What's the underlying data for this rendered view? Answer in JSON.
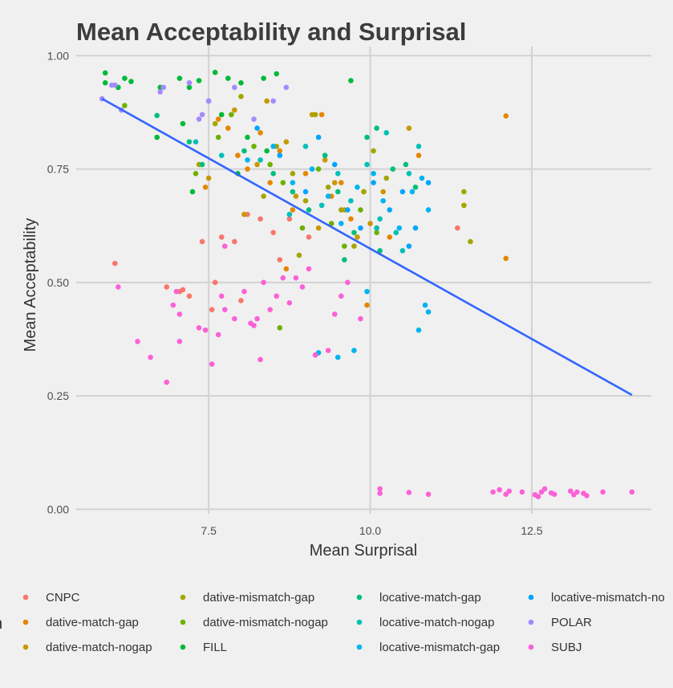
{
  "chart_data": {
    "type": "scatter",
    "title": "Mean Acceptability and Surprisal",
    "xlabel": "Mean Surprisal",
    "ylabel": "Mean Acceptability",
    "xlim": [
      5.45,
      14.35
    ],
    "ylim": [
      -0.01,
      1.02
    ],
    "x_ticks": [
      "7.5",
      "10.0",
      "12.5"
    ],
    "y_ticks": [
      "0.00",
      "0.25",
      "0.50",
      "0.75",
      "1.00"
    ],
    "grid": true,
    "legend": {
      "position": "bottom",
      "title": "n",
      "entries": [
        "CNPC",
        "dative-match-gap",
        "dative-match-nogap",
        "dative-mismatch-gap",
        "dative-mismatch-nogap",
        "FILL",
        "locative-match-gap",
        "locative-match-nogap",
        "locative-mismatch-gap",
        "locative-mismatch-no",
        "POLAR",
        "SUBJ"
      ]
    },
    "trend_line": {
      "color": "#3366ff",
      "points": [
        [
          5.85,
          0.905
        ],
        [
          14.05,
          0.252
        ]
      ]
    },
    "series": [
      {
        "name": "CNPC",
        "color": "#f8766d",
        "points": [
          [
            6.05,
            0.542
          ],
          [
            6.85,
            0.49
          ],
          [
            7.05,
            0.48
          ],
          [
            7.2,
            0.47
          ],
          [
            7.4,
            0.59
          ],
          [
            7.6,
            0.5
          ],
          [
            7.7,
            0.6
          ],
          [
            7.9,
            0.59
          ],
          [
            8.0,
            0.46
          ],
          [
            8.1,
            0.65
          ],
          [
            8.3,
            0.64
          ],
          [
            8.5,
            0.61
          ],
          [
            8.6,
            0.55
          ],
          [
            8.75,
            0.64
          ],
          [
            9.05,
            0.6
          ],
          [
            11.35,
            0.62
          ],
          [
            7.1,
            0.484
          ],
          [
            7.55,
            0.44
          ]
        ]
      },
      {
        "name": "dative-match-gap",
        "color": "#e58700",
        "points": [
          [
            7.65,
            0.86
          ],
          [
            7.8,
            0.84
          ],
          [
            7.95,
            0.78
          ],
          [
            8.1,
            0.75
          ],
          [
            8.3,
            0.83
          ],
          [
            8.45,
            0.72
          ],
          [
            8.6,
            0.79
          ],
          [
            8.8,
            0.66
          ],
          [
            9.0,
            0.74
          ],
          [
            9.25,
            0.87
          ],
          [
            9.4,
            0.69
          ],
          [
            9.55,
            0.72
          ],
          [
            9.7,
            0.64
          ],
          [
            9.9,
            0.7
          ],
          [
            10.1,
            0.62
          ],
          [
            10.3,
            0.6
          ],
          [
            10.75,
            0.78
          ],
          [
            12.1,
            0.867
          ],
          [
            12.1,
            0.553
          ],
          [
            9.95,
            0.45
          ],
          [
            8.7,
            0.53
          ],
          [
            7.45,
            0.71
          ]
        ]
      },
      {
        "name": "dative-match-nogap",
        "color": "#c99800",
        "points": [
          [
            7.5,
            0.73
          ],
          [
            7.9,
            0.88
          ],
          [
            8.25,
            0.76
          ],
          [
            8.4,
            0.9
          ],
          [
            8.7,
            0.81
          ],
          [
            8.85,
            0.69
          ],
          [
            9.1,
            0.87
          ],
          [
            9.3,
            0.77
          ],
          [
            9.45,
            0.72
          ],
          [
            9.6,
            0.66
          ],
          [
            9.8,
            0.6
          ],
          [
            10.0,
            0.63
          ],
          [
            10.2,
            0.7
          ],
          [
            10.6,
            0.84
          ],
          [
            8.05,
            0.65
          ],
          [
            9.2,
            0.62
          ]
        ]
      },
      {
        "name": "dative-mismatch-gap",
        "color": "#a3a500",
        "points": [
          [
            7.35,
            0.76
          ],
          [
            7.6,
            0.85
          ],
          [
            8.0,
            0.91
          ],
          [
            8.35,
            0.69
          ],
          [
            8.55,
            0.8
          ],
          [
            8.8,
            0.74
          ],
          [
            9.0,
            0.68
          ],
          [
            9.15,
            0.87
          ],
          [
            9.35,
            0.71
          ],
          [
            9.55,
            0.66
          ],
          [
            9.75,
            0.58
          ],
          [
            9.9,
            0.7
          ],
          [
            10.05,
            0.79
          ],
          [
            10.25,
            0.73
          ],
          [
            11.45,
            0.7
          ],
          [
            11.45,
            0.67
          ],
          [
            11.55,
            0.59
          ],
          [
            8.9,
            0.56
          ]
        ]
      },
      {
        "name": "dative-mismatch-nogap",
        "color": "#6bb100",
        "points": [
          [
            6.2,
            0.89
          ],
          [
            7.3,
            0.74
          ],
          [
            7.65,
            0.82
          ],
          [
            7.85,
            0.87
          ],
          [
            8.2,
            0.8
          ],
          [
            8.45,
            0.76
          ],
          [
            8.65,
            0.72
          ],
          [
            8.95,
            0.62
          ],
          [
            9.2,
            0.75
          ],
          [
            9.4,
            0.63
          ],
          [
            9.6,
            0.58
          ],
          [
            9.85,
            0.66
          ],
          [
            10.1,
            0.61
          ],
          [
            8.6,
            0.4
          ]
        ]
      },
      {
        "name": "FILL",
        "color": "#00ba38",
        "points": [
          [
            5.9,
            0.962
          ],
          [
            5.9,
            0.94
          ],
          [
            6.1,
            0.93
          ],
          [
            6.2,
            0.95
          ],
          [
            6.3,
            0.943
          ],
          [
            6.75,
            0.93
          ],
          [
            7.05,
            0.95
          ],
          [
            7.2,
            0.93
          ],
          [
            7.35,
            0.945
          ],
          [
            7.6,
            0.963
          ],
          [
            7.8,
            0.95
          ],
          [
            8.0,
            0.94
          ],
          [
            8.35,
            0.95
          ],
          [
            8.55,
            0.96
          ],
          [
            9.7,
            0.945
          ],
          [
            7.1,
            0.85
          ],
          [
            7.5,
            0.9
          ],
          [
            7.7,
            0.87
          ],
          [
            8.1,
            0.82
          ],
          [
            8.4,
            0.79
          ],
          [
            6.7,
            0.82
          ],
          [
            7.25,
            0.7
          ],
          [
            7.95,
            0.74
          ]
        ]
      },
      {
        "name": "locative-match-gap",
        "color": "#00bf7d",
        "points": [
          [
            6.7,
            0.868
          ],
          [
            7.2,
            0.81
          ],
          [
            7.4,
            0.76
          ],
          [
            8.05,
            0.79
          ],
          [
            8.5,
            0.74
          ],
          [
            8.8,
            0.7
          ],
          [
            9.05,
            0.66
          ],
          [
            9.3,
            0.78
          ],
          [
            9.5,
            0.7
          ],
          [
            9.75,
            0.61
          ],
          [
            9.95,
            0.82
          ],
          [
            10.1,
            0.84
          ],
          [
            10.35,
            0.75
          ],
          [
            10.55,
            0.76
          ],
          [
            10.7,
            0.71
          ],
          [
            10.15,
            0.57
          ],
          [
            9.6,
            0.55
          ]
        ]
      },
      {
        "name": "locative-match-nogap",
        "color": "#00c0b8",
        "points": [
          [
            7.3,
            0.81
          ],
          [
            7.7,
            0.78
          ],
          [
            8.3,
            0.77
          ],
          [
            8.75,
            0.65
          ],
          [
            9.0,
            0.8
          ],
          [
            9.25,
            0.67
          ],
          [
            9.5,
            0.74
          ],
          [
            9.7,
            0.68
          ],
          [
            9.95,
            0.76
          ],
          [
            10.15,
            0.64
          ],
          [
            10.25,
            0.83
          ],
          [
            10.4,
            0.61
          ],
          [
            10.6,
            0.74
          ],
          [
            10.75,
            0.8
          ],
          [
            10.5,
            0.57
          ],
          [
            10.1,
            0.62
          ]
        ]
      },
      {
        "name": "locative-mismatch-gap",
        "color": "#00b4ef",
        "points": [
          [
            8.1,
            0.77
          ],
          [
            8.5,
            0.8
          ],
          [
            8.8,
            0.72
          ],
          [
            9.1,
            0.75
          ],
          [
            9.35,
            0.69
          ],
          [
            9.55,
            0.63
          ],
          [
            9.8,
            0.71
          ],
          [
            10.05,
            0.74
          ],
          [
            10.2,
            0.68
          ],
          [
            10.45,
            0.62
          ],
          [
            10.65,
            0.7
          ],
          [
            10.8,
            0.73
          ],
          [
            10.9,
            0.66
          ],
          [
            10.85,
            0.45
          ],
          [
            10.9,
            0.435
          ],
          [
            10.75,
            0.395
          ],
          [
            9.5,
            0.335
          ],
          [
            9.75,
            0.35
          ],
          [
            9.2,
            0.345
          ],
          [
            9.95,
            0.48
          ]
        ]
      },
      {
        "name": "locative-mismatch-no",
        "color": "#00a5ff",
        "points": [
          [
            8.25,
            0.84
          ],
          [
            8.6,
            0.78
          ],
          [
            9.0,
            0.7
          ],
          [
            9.2,
            0.82
          ],
          [
            9.45,
            0.76
          ],
          [
            9.65,
            0.66
          ],
          [
            9.85,
            0.62
          ],
          [
            10.05,
            0.72
          ],
          [
            10.3,
            0.66
          ],
          [
            10.5,
            0.7
          ],
          [
            10.7,
            0.62
          ],
          [
            10.9,
            0.72
          ],
          [
            10.6,
            0.58
          ]
        ]
      },
      {
        "name": "POLAR",
        "color": "#a58aff",
        "points": [
          [
            5.85,
            0.905
          ],
          [
            6.0,
            0.935
          ],
          [
            6.05,
            0.935
          ],
          [
            6.15,
            0.88
          ],
          [
            6.75,
            0.92
          ],
          [
            6.8,
            0.93
          ],
          [
            7.2,
            0.94
          ],
          [
            7.4,
            0.87
          ],
          [
            7.5,
            0.9
          ],
          [
            7.9,
            0.93
          ],
          [
            8.2,
            0.86
          ],
          [
            8.5,
            0.9
          ],
          [
            8.7,
            0.93
          ],
          [
            7.35,
            0.86
          ]
        ]
      },
      {
        "name": "SUBJ",
        "color": "#fb61d7",
        "points": [
          [
            6.1,
            0.49
          ],
          [
            6.4,
            0.37
          ],
          [
            6.6,
            0.335
          ],
          [
            6.85,
            0.28
          ],
          [
            7.0,
            0.48
          ],
          [
            7.05,
            0.43
          ],
          [
            7.05,
            0.37
          ],
          [
            7.35,
            0.4
          ],
          [
            7.45,
            0.395
          ],
          [
            7.55,
            0.32
          ],
          [
            7.65,
            0.385
          ],
          [
            7.7,
            0.47
          ],
          [
            7.75,
            0.58
          ],
          [
            7.9,
            0.42
          ],
          [
            8.05,
            0.48
          ],
          [
            8.15,
            0.41
          ],
          [
            8.25,
            0.42
          ],
          [
            8.35,
            0.5
          ],
          [
            8.45,
            0.44
          ],
          [
            8.55,
            0.47
          ],
          [
            8.65,
            0.51
          ],
          [
            8.75,
            0.455
          ],
          [
            8.85,
            0.51
          ],
          [
            8.95,
            0.49
          ],
          [
            9.05,
            0.53
          ],
          [
            9.15,
            0.34
          ],
          [
            9.35,
            0.35
          ],
          [
            9.45,
            0.43
          ],
          [
            9.55,
            0.47
          ],
          [
            9.65,
            0.5
          ],
          [
            9.85,
            0.42
          ],
          [
            8.3,
            0.33
          ],
          [
            8.2,
            0.405
          ],
          [
            10.15,
            0.045
          ],
          [
            10.15,
            0.035
          ],
          [
            10.6,
            0.037
          ],
          [
            10.9,
            0.033
          ],
          [
            11.9,
            0.038
          ],
          [
            12.0,
            0.043
          ],
          [
            12.1,
            0.033
          ],
          [
            12.15,
            0.04
          ],
          [
            12.35,
            0.038
          ],
          [
            12.55,
            0.032
          ],
          [
            12.6,
            0.028
          ],
          [
            12.65,
            0.038
          ],
          [
            12.7,
            0.045
          ],
          [
            12.8,
            0.036
          ],
          [
            12.85,
            0.033
          ],
          [
            13.1,
            0.04
          ],
          [
            13.15,
            0.032
          ],
          [
            13.2,
            0.038
          ],
          [
            13.3,
            0.035
          ],
          [
            13.35,
            0.03
          ],
          [
            13.6,
            0.038
          ],
          [
            14.05,
            0.038
          ],
          [
            6.95,
            0.45
          ],
          [
            7.75,
            0.44
          ]
        ]
      }
    ]
  }
}
